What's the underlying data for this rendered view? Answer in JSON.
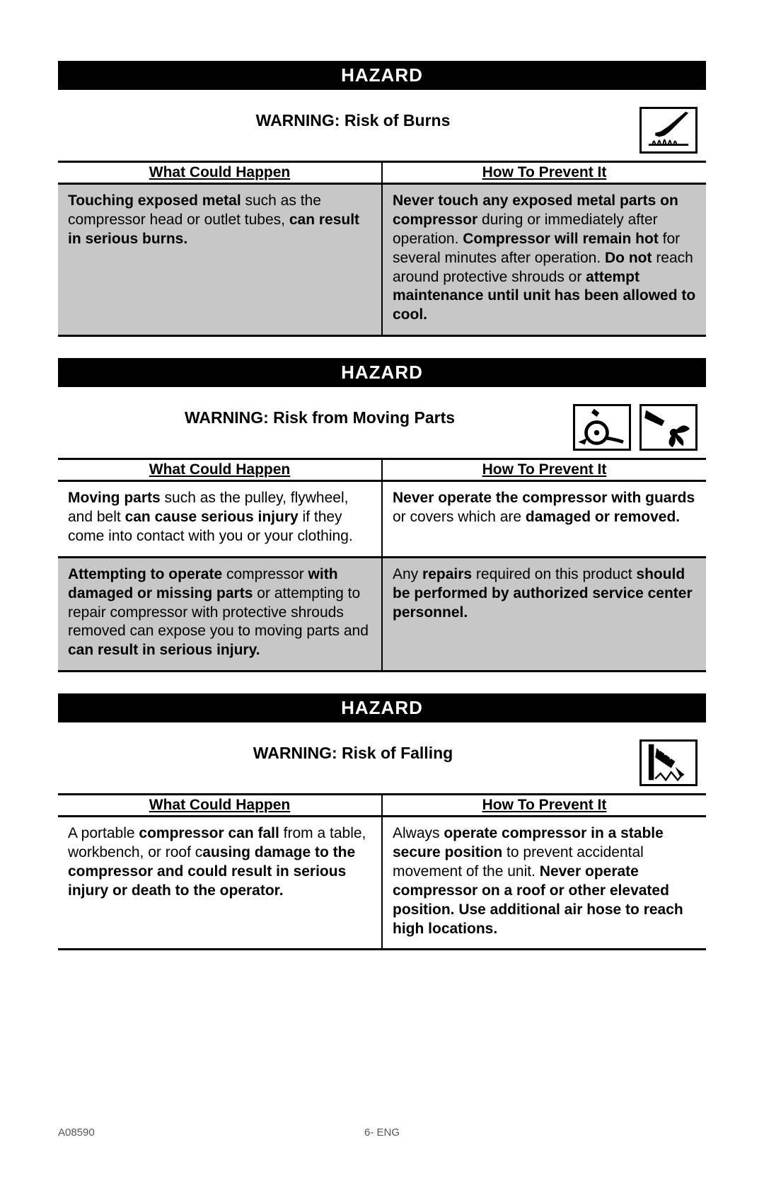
{
  "hazard_label": "HAZARD",
  "col_headers": {
    "left": "What Could Happen",
    "right": "How To Prevent It"
  },
  "sections": [
    {
      "warning_title": "WARNING: Risk of Burns",
      "icons": [
        "burn"
      ],
      "rows": [
        {
          "shaded": true,
          "left": "<b>Touching exposed metal</b> such as the compressor head or outlet tubes, <b>can result in serious burns.</b>",
          "right": "<b>Never touch any exposed metal parts on compressor</b> during or immediately after operation. <b>Compressor will remain hot</b> for several minutes after operation. <b>Do not</b> reach around protective shrouds or <b>attempt maintenance until unit has been allowed to cool.</b>"
        }
      ]
    },
    {
      "warning_title": "WARNING: Risk from Moving Parts",
      "icons": [
        "pulley",
        "fan"
      ],
      "rows": [
        {
          "shaded": false,
          "left": "<b>Moving parts</b> such as the pulley, flywheel, and belt <b>can cause serious injury</b> if they come into contact with you or your clothing.",
          "right": "<b>Never operate the compressor with guards</b> or covers which are <b>damaged or removed.</b>"
        },
        {
          "shaded": true,
          "left": "<b>Attempting to operate</b> compressor <b>with damaged or missing parts</b> or attempting to repair compressor with protective shrouds removed can expose you to moving parts and <b>can result in serious injury.</b>",
          "right": "Any <b>repairs</b> required on this product <b>should be performed by authorized service center personnel.</b>"
        }
      ]
    },
    {
      "warning_title": "WARNING: Risk of Falling",
      "icons": [
        "fall"
      ],
      "rows": [
        {
          "shaded": false,
          "left": "A portable <b>compressor can fall</b> from a table, workbench, or roof c<b>ausing damage to the compressor and could result in serious injury or death to the operator.</b>",
          "right": "Always <b>operate compressor in a stable secure position</b> to prevent accidental movement of the unit. <b>Never operate compressor on a roof or other elevated position. Use additional air hose to reach high locations.</b>"
        }
      ]
    }
  ],
  "footer": {
    "doc_id": "A08590",
    "page": "6- ENG"
  },
  "colors": {
    "shaded_bg": "#c7c7c7",
    "banner_bg": "#000000",
    "banner_fg": "#ffffff",
    "border": "#000000"
  }
}
